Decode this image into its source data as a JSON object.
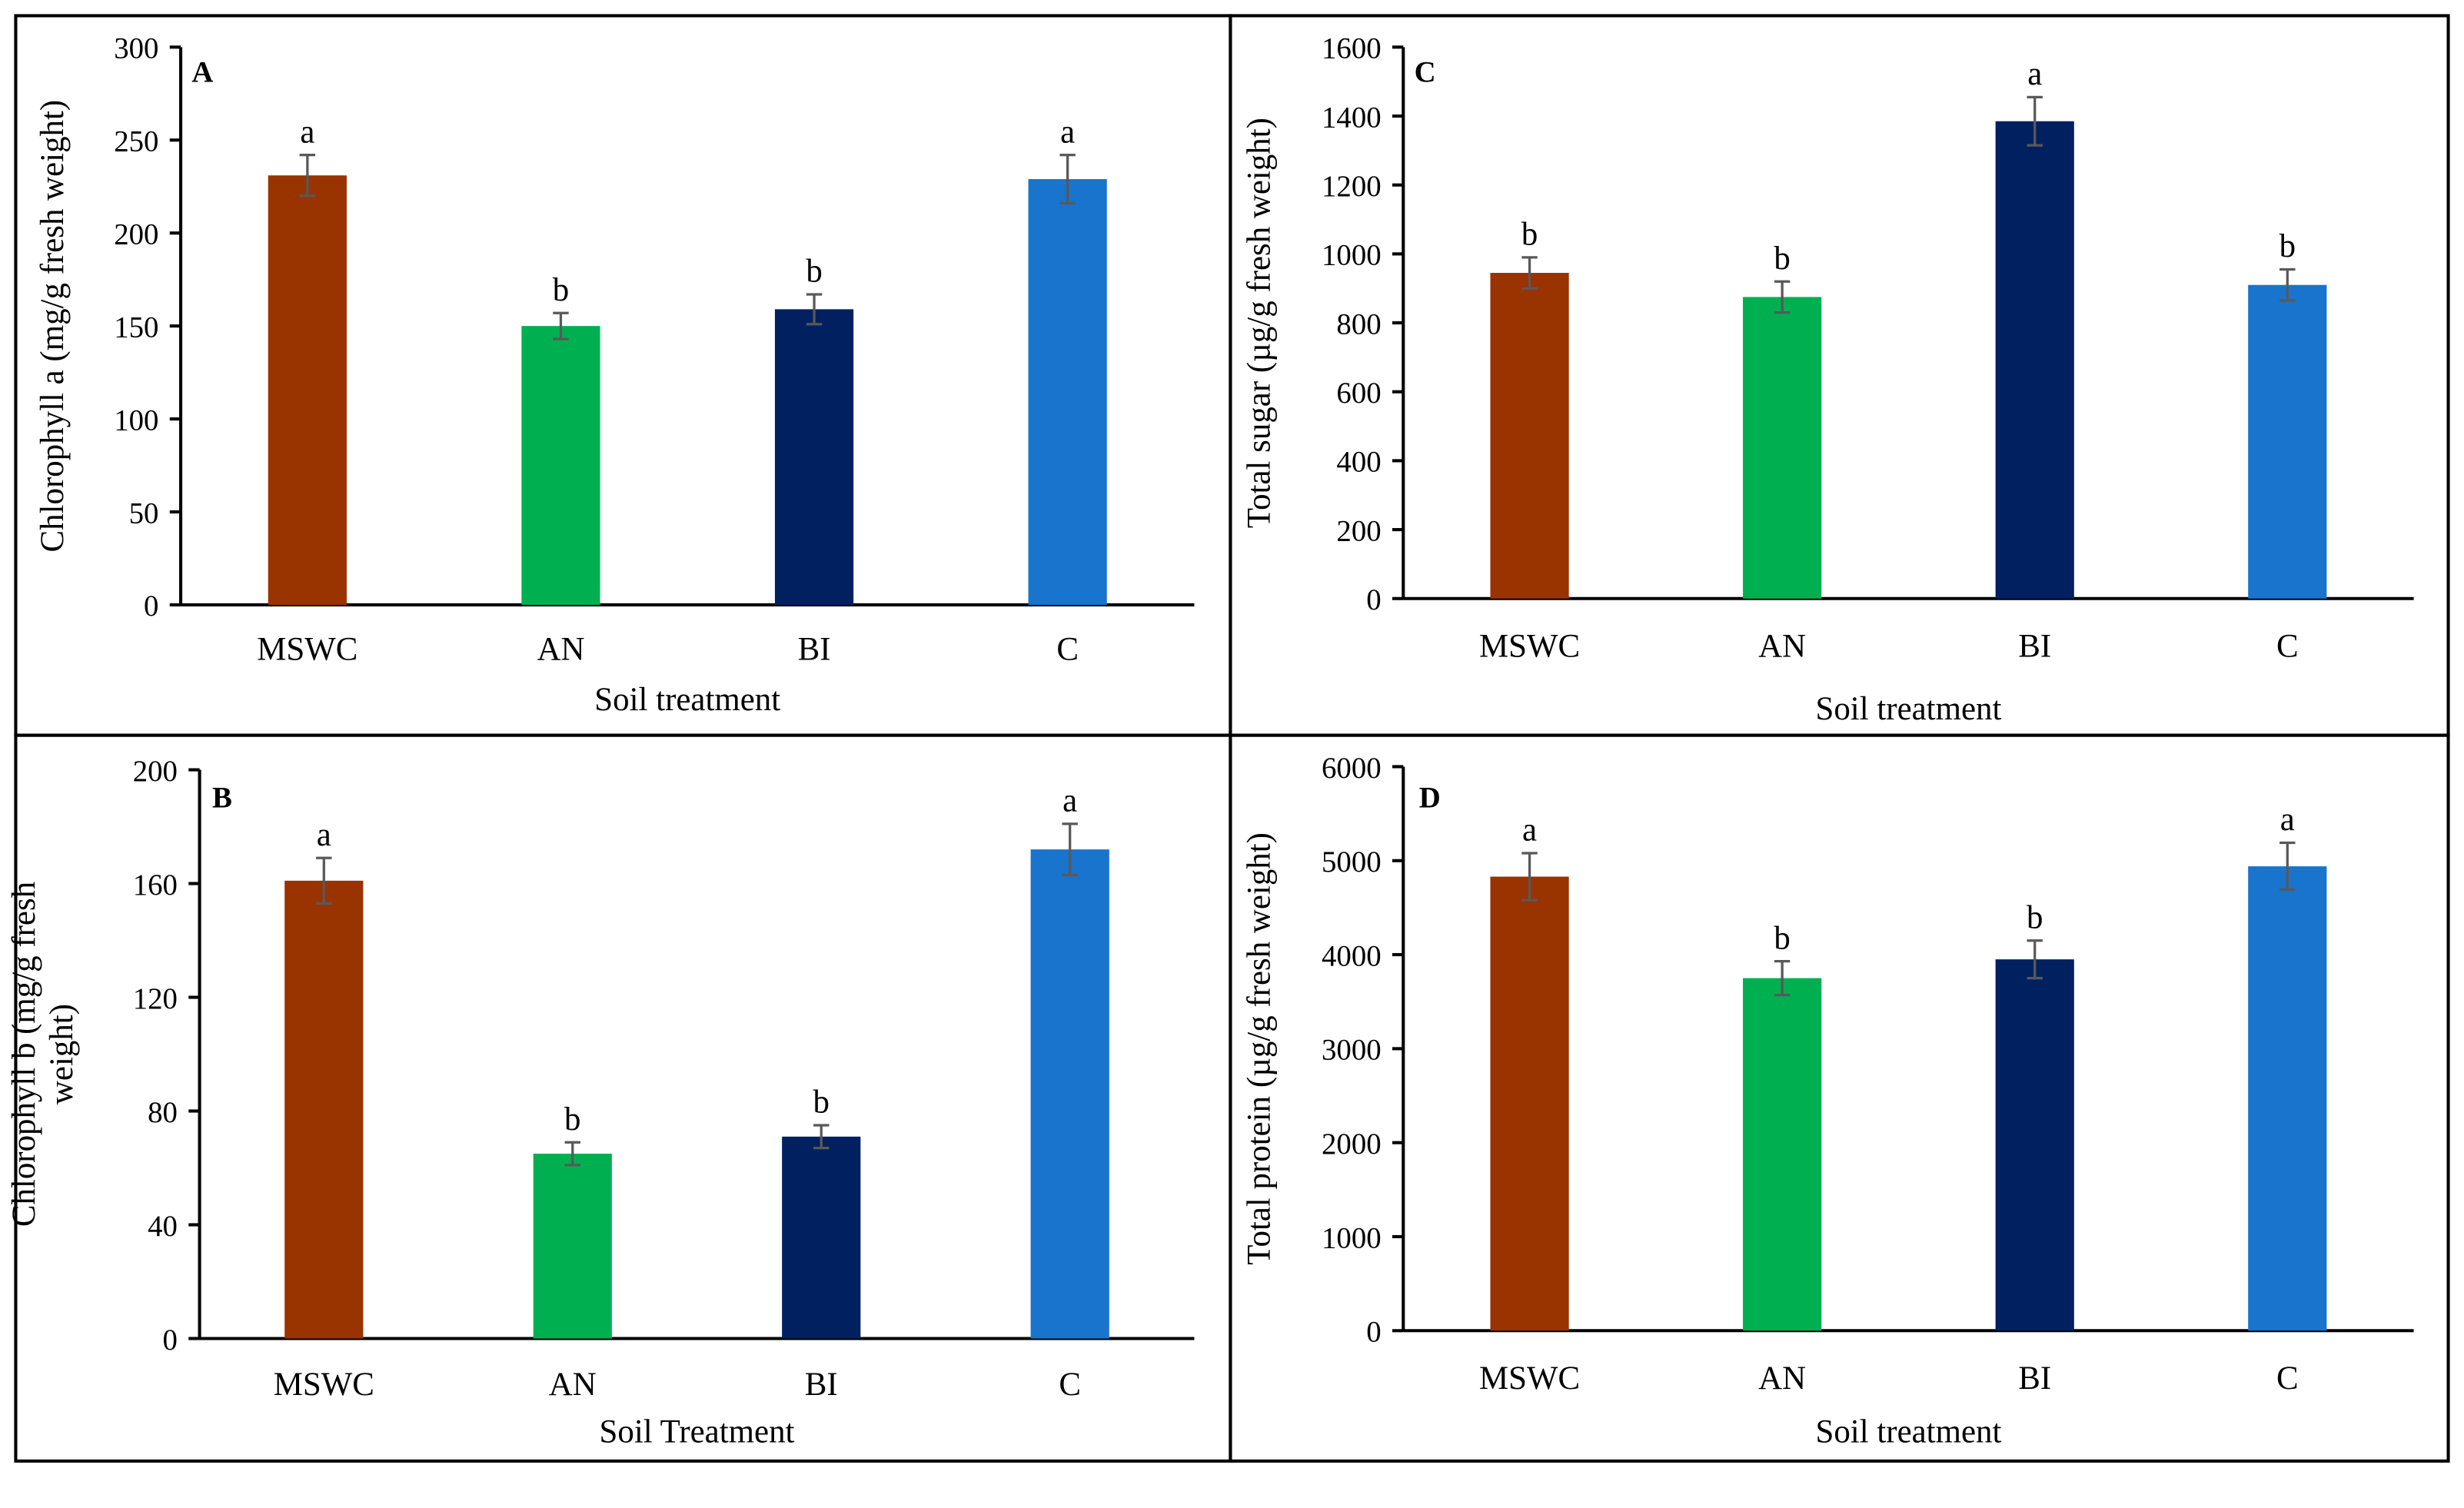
{
  "colors": {
    "MSWC": "#993300",
    "AN": "#00B050",
    "BI": "#002060",
    "C": "#1874CD"
  },
  "chart_data": [
    {
      "panel": "A",
      "type": "bar",
      "categories": [
        "MSWC",
        "AN",
        "BI",
        "C"
      ],
      "values": [
        231,
        150,
        159,
        229
      ],
      "errors": [
        11,
        7,
        8,
        13
      ],
      "letters": [
        "a",
        "b",
        "b",
        "a"
      ],
      "ylim": [
        0,
        300
      ],
      "yticks": [
        0,
        50,
        100,
        150,
        200,
        250,
        300
      ],
      "ylabel": [
        "Chlorophyll a (mg/g fresh weight)"
      ],
      "xlabel": "Soil treatment",
      "grid": false
    },
    {
      "panel": "B",
      "type": "bar",
      "categories": [
        "MSWC",
        "AN",
        "BI",
        "C"
      ],
      "values": [
        161,
        65,
        71,
        172
      ],
      "errors": [
        8,
        4,
        4,
        9
      ],
      "letters": [
        "a",
        "b",
        "b",
        "a"
      ],
      "ylim": [
        0,
        200
      ],
      "yticks": [
        0,
        40,
        80,
        120,
        160,
        200
      ],
      "ylabel": [
        "Chlorophyll b (mg/g fresh",
        "weight)"
      ],
      "xlabel": "Soil Treatment",
      "grid": false
    },
    {
      "panel": "C",
      "type": "bar",
      "categories": [
        "MSWC",
        "AN",
        "BI",
        "C"
      ],
      "values": [
        945,
        875,
        1385,
        910
      ],
      "errors": [
        45,
        45,
        70,
        45
      ],
      "letters": [
        "b",
        "b",
        "a",
        "b"
      ],
      "ylim": [
        0,
        1600
      ],
      "yticks": [
        0,
        200,
        400,
        600,
        800,
        1000,
        1200,
        1400,
        1600
      ],
      "ylabel": [
        "Total sugar (µg/g fresh weight)"
      ],
      "xlabel": "Soil treatment",
      "grid": false
    },
    {
      "panel": "D",
      "type": "bar",
      "categories": [
        "MSWC",
        "AN",
        "BI",
        "C"
      ],
      "values": [
        4830,
        3750,
        3950,
        4940
      ],
      "errors": [
        250,
        180,
        200,
        250
      ],
      "letters": [
        "a",
        "b",
        "b",
        "a"
      ],
      "ylim": [
        0,
        6000
      ],
      "yticks": [
        0,
        1000,
        2000,
        3000,
        4000,
        5000,
        6000
      ],
      "ylabel": [
        "Total protein (µg/g fresh weight)"
      ],
      "xlabel": "Soil treatment",
      "grid": false
    }
  ]
}
